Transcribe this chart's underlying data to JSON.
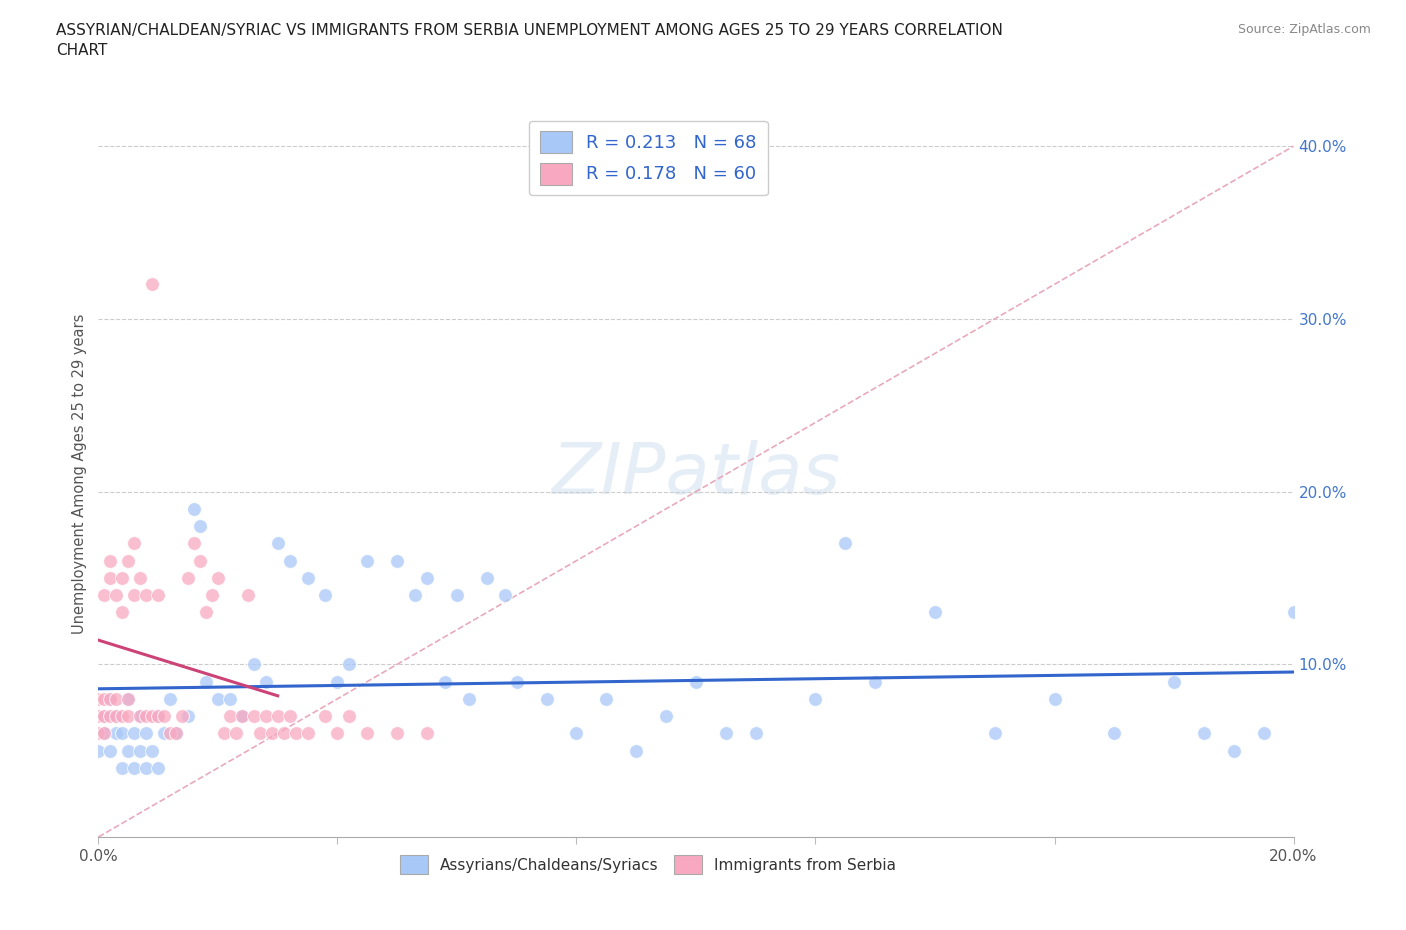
{
  "title": "ASSYRIAN/CHALDEAN/SYRIAC VS IMMIGRANTS FROM SERBIA UNEMPLOYMENT AMONG AGES 25 TO 29 YEARS CORRELATION\nCHART",
  "source_text": "Source: ZipAtlas.com",
  "ylabel": "Unemployment Among Ages 25 to 29 years",
  "xlim": [
    0.0,
    0.2
  ],
  "ylim": [
    0.0,
    0.42
  ],
  "R_blue": 0.213,
  "N_blue": 68,
  "R_pink": 0.178,
  "N_pink": 60,
  "color_blue": "#a8c8f8",
  "color_pink": "#f8a8c0",
  "color_line_blue": "#3366cc",
  "color_line_pink": "#cc4477",
  "color_diagonal": "#ddaaaa",
  "legend_label_blue": "Assyrians/Chaldeans/Syriacs",
  "legend_label_pink": "Immigrants from Serbia",
  "blue_x": [
    0.0,
    0.001,
    0.001,
    0.002,
    0.002,
    0.003,
    0.003,
    0.004,
    0.004,
    0.005,
    0.005,
    0.006,
    0.006,
    0.007,
    0.007,
    0.008,
    0.008,
    0.009,
    0.01,
    0.01,
    0.011,
    0.012,
    0.013,
    0.015,
    0.016,
    0.017,
    0.018,
    0.02,
    0.022,
    0.024,
    0.026,
    0.028,
    0.03,
    0.032,
    0.035,
    0.038,
    0.04,
    0.042,
    0.045,
    0.05,
    0.053,
    0.055,
    0.058,
    0.06,
    0.062,
    0.065,
    0.068,
    0.07,
    0.075,
    0.08,
    0.085,
    0.09,
    0.095,
    0.1,
    0.105,
    0.11,
    0.12,
    0.125,
    0.13,
    0.14,
    0.15,
    0.16,
    0.17,
    0.18,
    0.185,
    0.19,
    0.195,
    0.2
  ],
  "blue_y": [
    0.05,
    0.06,
    0.07,
    0.05,
    0.08,
    0.06,
    0.07,
    0.04,
    0.06,
    0.05,
    0.08,
    0.04,
    0.06,
    0.05,
    0.07,
    0.04,
    0.06,
    0.05,
    0.07,
    0.04,
    0.06,
    0.08,
    0.06,
    0.07,
    0.19,
    0.18,
    0.09,
    0.08,
    0.08,
    0.07,
    0.1,
    0.09,
    0.17,
    0.16,
    0.15,
    0.14,
    0.09,
    0.1,
    0.16,
    0.16,
    0.14,
    0.15,
    0.09,
    0.14,
    0.08,
    0.15,
    0.14,
    0.09,
    0.08,
    0.06,
    0.08,
    0.05,
    0.07,
    0.09,
    0.06,
    0.06,
    0.08,
    0.17,
    0.09,
    0.13,
    0.06,
    0.08,
    0.06,
    0.09,
    0.06,
    0.05,
    0.06,
    0.13
  ],
  "pink_x": [
    0.0,
    0.0,
    0.0,
    0.001,
    0.001,
    0.001,
    0.001,
    0.002,
    0.002,
    0.002,
    0.002,
    0.003,
    0.003,
    0.003,
    0.004,
    0.004,
    0.004,
    0.005,
    0.005,
    0.005,
    0.006,
    0.006,
    0.007,
    0.007,
    0.008,
    0.008,
    0.009,
    0.009,
    0.01,
    0.01,
    0.011,
    0.012,
    0.013,
    0.014,
    0.015,
    0.016,
    0.017,
    0.018,
    0.019,
    0.02,
    0.021,
    0.022,
    0.023,
    0.024,
    0.025,
    0.026,
    0.027,
    0.028,
    0.029,
    0.03,
    0.031,
    0.032,
    0.033,
    0.035,
    0.038,
    0.04,
    0.042,
    0.045,
    0.05,
    0.055
  ],
  "pink_y": [
    0.07,
    0.08,
    0.06,
    0.07,
    0.08,
    0.06,
    0.14,
    0.07,
    0.08,
    0.15,
    0.16,
    0.07,
    0.08,
    0.14,
    0.07,
    0.13,
    0.15,
    0.07,
    0.08,
    0.16,
    0.14,
    0.17,
    0.07,
    0.15,
    0.07,
    0.14,
    0.07,
    0.32,
    0.07,
    0.14,
    0.07,
    0.06,
    0.06,
    0.07,
    0.15,
    0.17,
    0.16,
    0.13,
    0.14,
    0.15,
    0.06,
    0.07,
    0.06,
    0.07,
    0.14,
    0.07,
    0.06,
    0.07,
    0.06,
    0.07,
    0.06,
    0.07,
    0.06,
    0.06,
    0.07,
    0.06,
    0.07,
    0.06,
    0.06,
    0.06
  ]
}
